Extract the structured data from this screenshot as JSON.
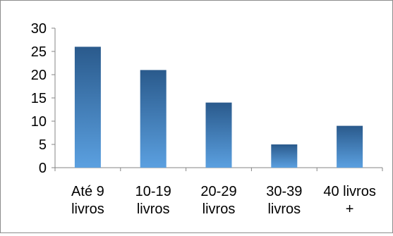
{
  "chart_data": {
    "type": "bar",
    "title": "",
    "xlabel": "",
    "ylabel": "",
    "ylim": [
      0,
      30
    ],
    "yticks": [
      0,
      5,
      10,
      15,
      20,
      25,
      30
    ],
    "grid": false,
    "legend": "none",
    "categories": [
      [
        "Até 9",
        "livros"
      ],
      [
        "10-19",
        "livros"
      ],
      [
        "20-29",
        "livros"
      ],
      [
        "30-39",
        "livros"
      ],
      [
        "40 livros",
        "+"
      ]
    ],
    "values": [
      26,
      21,
      14,
      5,
      9
    ],
    "colors": {
      "bar_top": "#2a5a8c",
      "bar_bottom": "#5ba0e0",
      "axis": "#868686"
    }
  }
}
